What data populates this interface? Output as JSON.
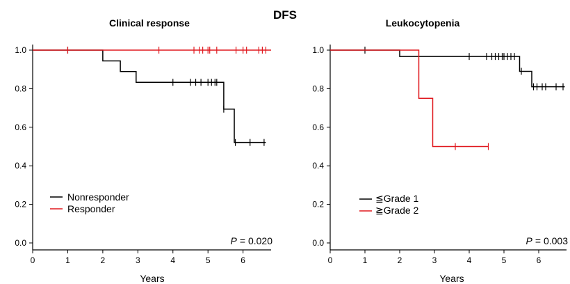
{
  "figure_title": "DFS",
  "colors": {
    "black_series": "#000000",
    "red_series": "#e0191f",
    "axis": "#000000"
  },
  "chart_data": [
    {
      "type": "line",
      "subtype": "kaplan-meier step",
      "title": "Clinical response",
      "xlabel": "Years",
      "ylabel": "",
      "xlim": [
        0,
        6.8
      ],
      "ylim": [
        0.0,
        1.0
      ],
      "xticks": [
        "0",
        "1",
        "2",
        "3",
        "4",
        "5",
        "6"
      ],
      "yticks": [
        "0.0",
        "0.2",
        "0.4",
        "0.6",
        "0.8",
        "1.0"
      ],
      "grid": false,
      "legend_position": "bottom-left",
      "annotation": {
        "p_label": "P",
        "p_value": "= 0.020"
      },
      "series": [
        {
          "name": "Nonresponder",
          "color": "#000000",
          "steps": [
            [
              0,
              1.0
            ],
            [
              2.0,
              0.944
            ],
            [
              2.5,
              0.889
            ],
            [
              2.95,
              0.833
            ],
            [
              5.45,
              0.694
            ],
            [
              5.75,
              0.521
            ],
            [
              6.65,
              0.521
            ]
          ],
          "censor_x": [
            1.0,
            4.0,
            4.5,
            4.65,
            4.8,
            5.0,
            5.1,
            5.2,
            5.25,
            5.45,
            5.78,
            6.2,
            6.6
          ]
        },
        {
          "name": "Responder",
          "color": "#e0191f",
          "steps": [
            [
              0,
              1.0
            ],
            [
              6.8,
              1.0
            ]
          ],
          "censor_x": [
            1.0,
            3.6,
            4.6,
            4.75,
            4.85,
            5.0,
            5.05,
            5.25,
            5.8,
            6.0,
            6.1,
            6.45,
            6.55,
            6.65
          ]
        }
      ]
    },
    {
      "type": "line",
      "subtype": "kaplan-meier step",
      "title": "Leukocytopenia",
      "xlabel": "Years",
      "ylabel": "",
      "xlim": [
        0,
        6.8
      ],
      "ylim": [
        0.0,
        1.0
      ],
      "xticks": [
        "0",
        "1",
        "2",
        "3",
        "4",
        "5",
        "6"
      ],
      "yticks": [
        "0.0",
        "0.2",
        "0.4",
        "0.6",
        "0.8",
        "1.0"
      ],
      "grid": false,
      "legend_position": "bottom-left",
      "annotation": {
        "p_label": "P",
        "p_value": "= 0.003"
      },
      "series": [
        {
          "name": "≦Grade 1",
          "color": "#000000",
          "steps": [
            [
              0,
              1.0
            ],
            [
              2.0,
              0.967
            ],
            [
              5.45,
              0.89
            ],
            [
              5.8,
              0.81
            ],
            [
              6.75,
              0.81
            ]
          ],
          "censor_x": [
            1.0,
            4.0,
            4.5,
            4.65,
            4.75,
            4.85,
            4.95,
            5.0,
            5.1,
            5.2,
            5.3,
            5.5,
            5.85,
            5.95,
            6.1,
            6.2,
            6.5,
            6.7
          ]
        },
        {
          "name": "≧Grade 2",
          "color": "#e0191f",
          "steps": [
            [
              0,
              1.0
            ],
            [
              2.55,
              0.75
            ],
            [
              2.95,
              0.5
            ],
            [
              4.55,
              0.5
            ]
          ],
          "censor_x": [
            3.6,
            4.55
          ]
        }
      ]
    }
  ]
}
